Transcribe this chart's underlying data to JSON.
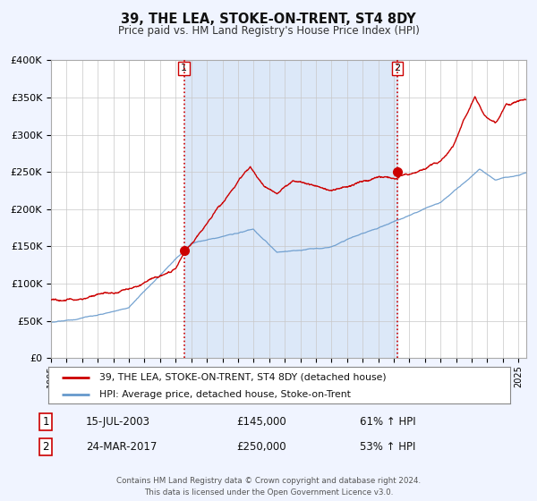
{
  "title": "39, THE LEA, STOKE-ON-TRENT, ST4 8DY",
  "subtitle": "Price paid vs. HM Land Registry's House Price Index (HPI)",
  "bg_color": "#f0f4ff",
  "plot_bg_color": "#ffffff",
  "shade_color": "#dce8f8",
  "grid_color": "#c8c8c8",
  "red_color": "#cc0000",
  "blue_color": "#6699cc",
  "marker1_date": 2003.54,
  "marker1_price": 145000,
  "marker2_date": 2017.23,
  "marker2_price": 250000,
  "legend1": "39, THE LEA, STOKE-ON-TRENT, ST4 8DY (detached house)",
  "legend2": "HPI: Average price, detached house, Stoke-on-Trent",
  "note1_date": "15-JUL-2003",
  "note1_price": "£145,000",
  "note1_hpi": "61% ↑ HPI",
  "note2_date": "24-MAR-2017",
  "note2_price": "£250,000",
  "note2_hpi": "53% ↑ HPI",
  "footer1": "Contains HM Land Registry data © Crown copyright and database right 2024.",
  "footer2": "This data is licensed under the Open Government Licence v3.0.",
  "ylim": [
    0,
    400000
  ],
  "xlim_start": 1995.0,
  "xlim_end": 2025.5
}
